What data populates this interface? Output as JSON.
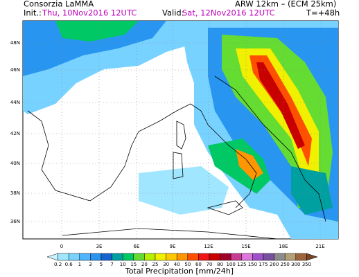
{
  "header": {
    "producer": "Consorzia LaMMA",
    "model": "ARW 12km – (ECM 25km)",
    "init_label": "Init.:",
    "init": "Thu, 10Nov2016 12UTC",
    "valid_label": "Valid:",
    "valid": "Sat, 12Nov2016 12UTC",
    "step": "T=+48h"
  },
  "map": {
    "lat_labels": [
      "48N",
      "46N",
      "44N",
      "42N",
      "40N",
      "38N",
      "36N"
    ],
    "lon_labels": [
      "0",
      "3E",
      "6E",
      "9E",
      "12E",
      "15E",
      "18E",
      "21E"
    ]
  },
  "colorbar": {
    "labels": [
      "0.2",
      "0.6",
      "1",
      "3",
      "5",
      "7",
      "10",
      "15",
      "20",
      "25",
      "30",
      "40",
      "50",
      "60",
      "70",
      "80",
      "100",
      "125",
      "150",
      "175",
      "200",
      "250",
      "300",
      "350"
    ],
    "colors": [
      "#c8f5ff",
      "#a0e6ff",
      "#78d2ff",
      "#50b4ff",
      "#2896f0",
      "#1464d2",
      "#00a0a0",
      "#00c864",
      "#64dc32",
      "#b4f000",
      "#f0f000",
      "#ffc800",
      "#ff9600",
      "#ff5000",
      "#f01414",
      "#c80000",
      "#a00028",
      "#c83c96",
      "#dc78dc",
      "#a050c8",
      "#7850a0",
      "#8c8c8c",
      "#b4a078",
      "#a0643c",
      "#784628"
    ],
    "title": "Total Precipitation [mm/24h]"
  }
}
